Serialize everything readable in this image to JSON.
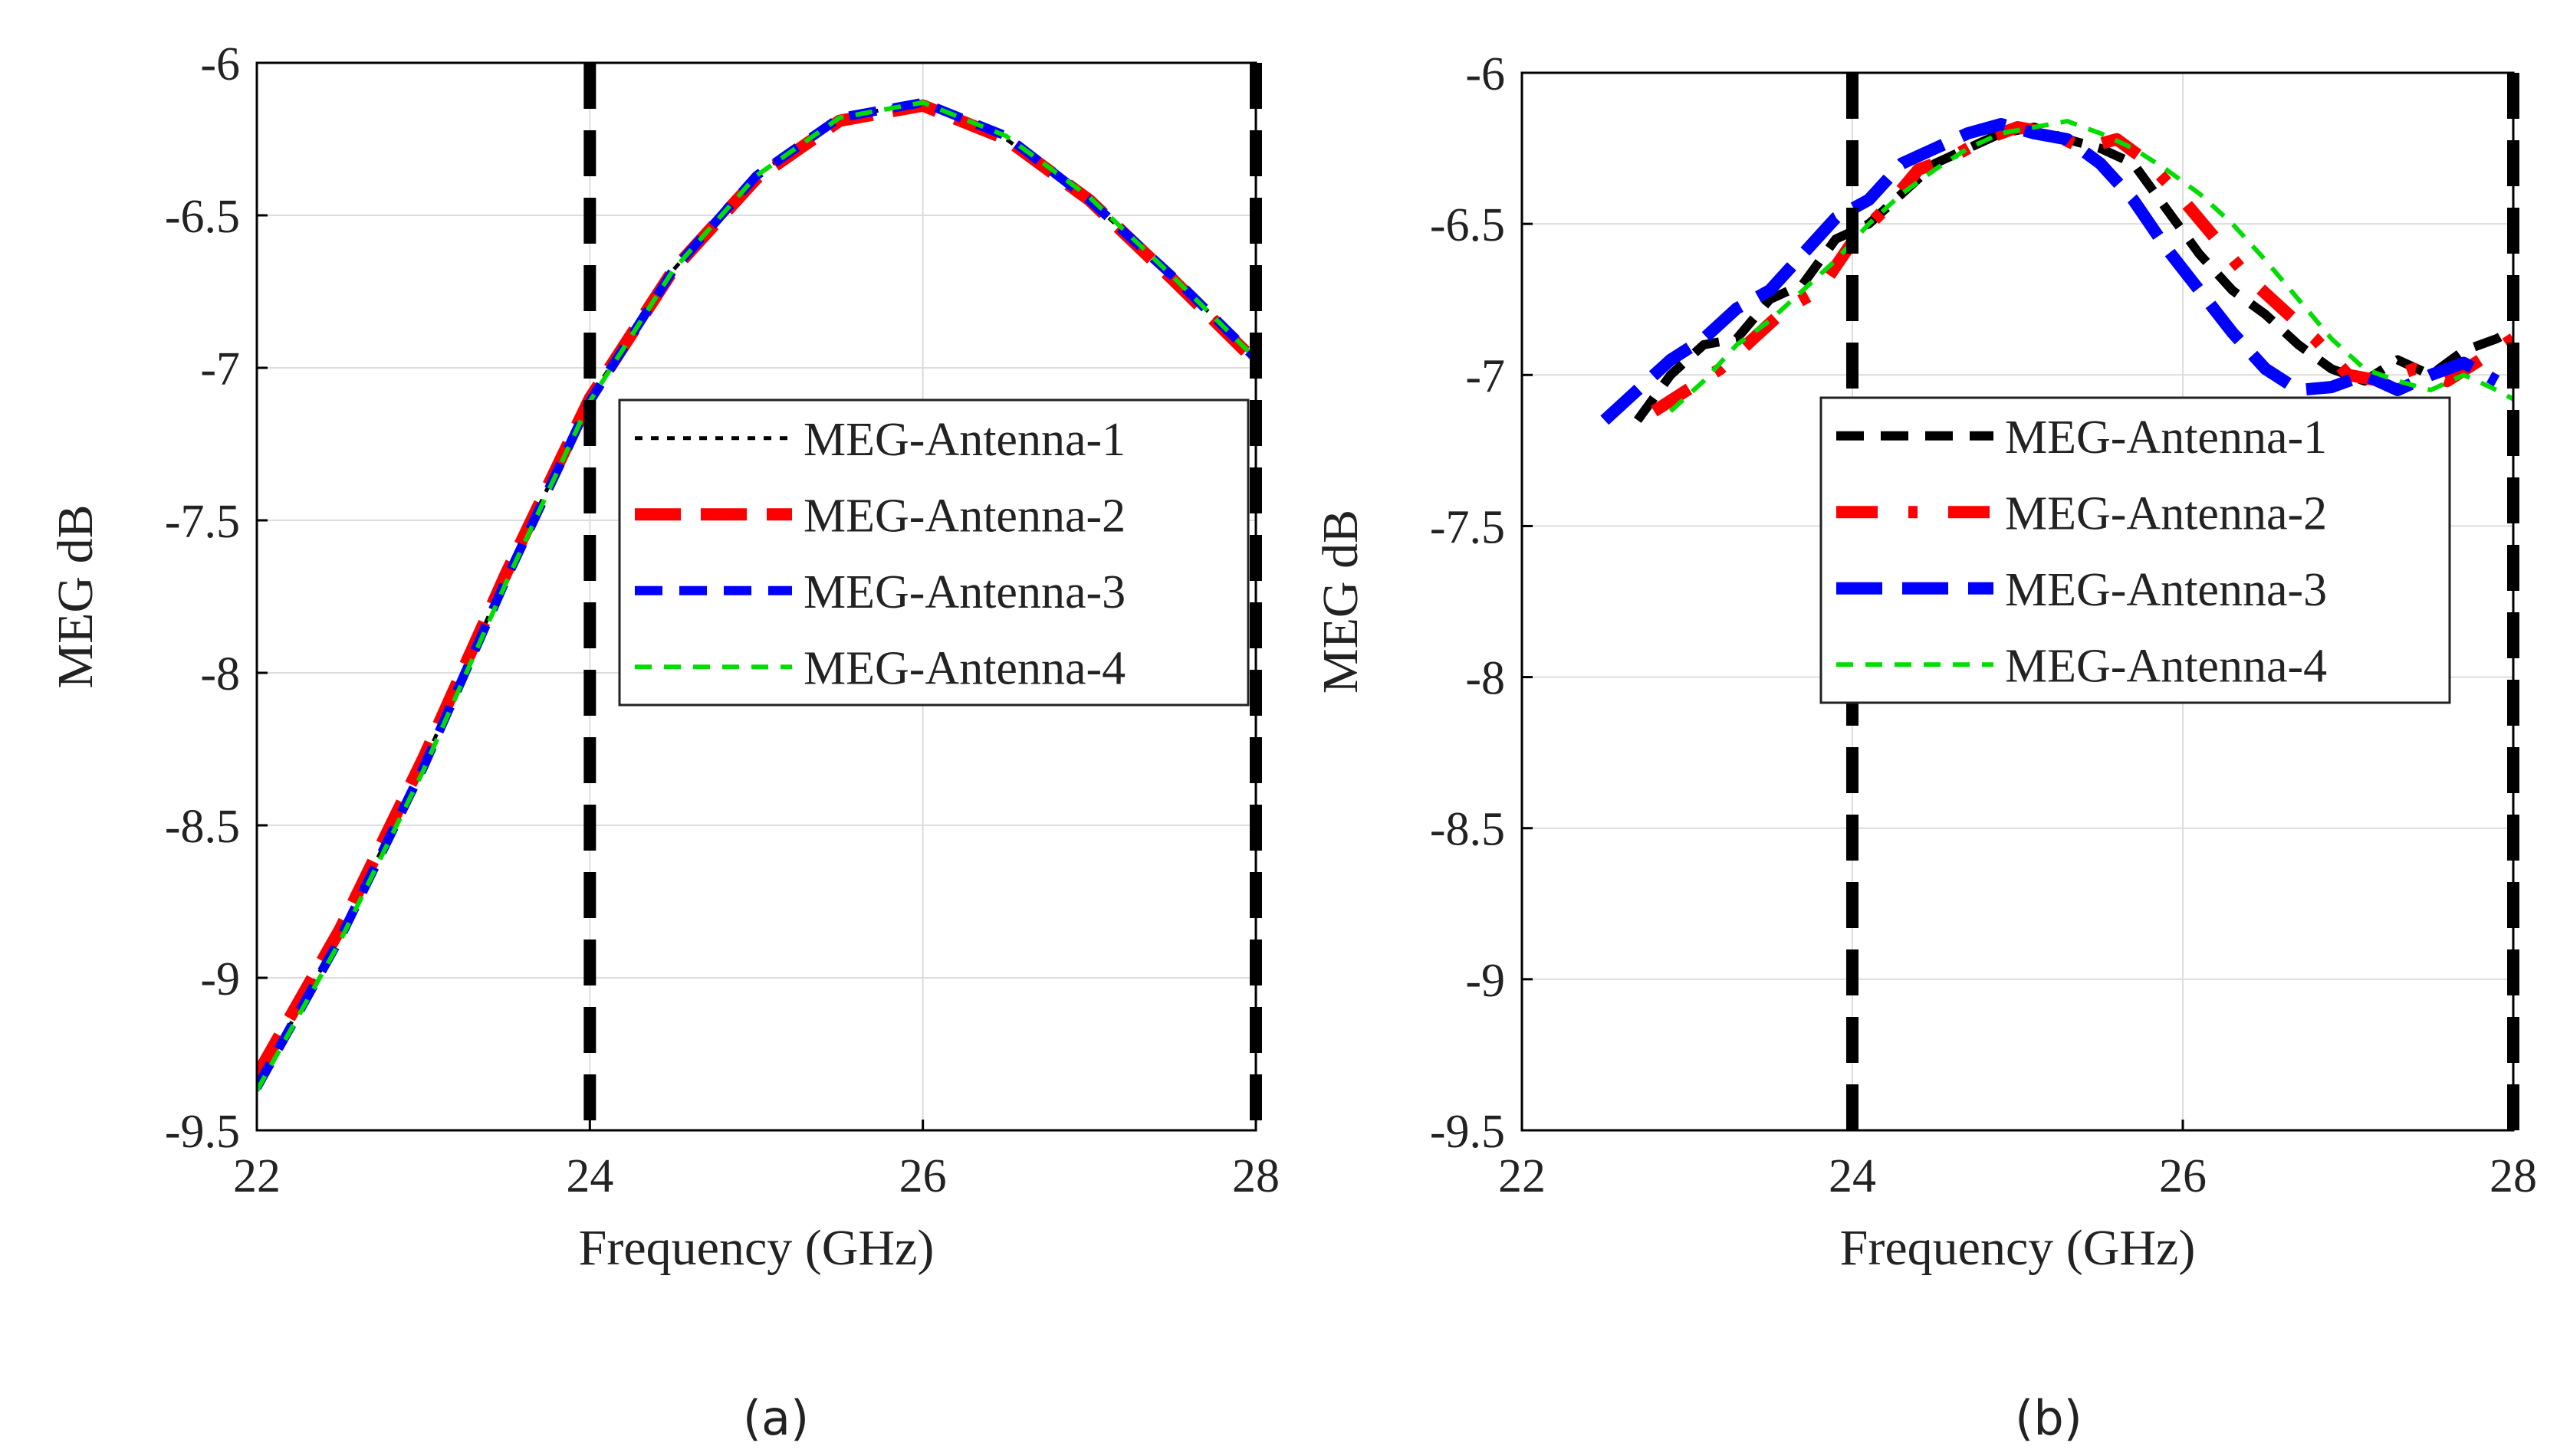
{
  "chart_data": [
    {
      "type": "line",
      "panel_label": "(a)",
      "xlabel": "Frequency (GHz)",
      "ylabel": "MEG dB",
      "xlim": [
        22,
        28
      ],
      "ylim": [
        -9.5,
        -6
      ],
      "xticks": [
        22,
        24,
        26,
        28
      ],
      "xtick_labels": [
        "22",
        "24",
        "26",
        "28"
      ],
      "yticks": [
        -6,
        -6.5,
        -7,
        -7.5,
        -8,
        -8.5,
        -9,
        -9.5
      ],
      "ytick_labels": [
        "-6",
        "-6.5",
        "-7",
        "-7.5",
        "-8",
        "-8.5",
        "-9",
        "-9.5"
      ],
      "grid": true,
      "legend_position": "center-right",
      "vertical_markers": [
        24,
        28
      ],
      "series": [
        {
          "name": "MEG-Antenna-1",
          "color": "#000000",
          "style": "dotted",
          "x": [
            22,
            22.5,
            23,
            23.5,
            24,
            24.5,
            25,
            25.5,
            26,
            26.5,
            27,
            27.5,
            28
          ],
          "y": [
            -9.35,
            -8.86,
            -8.3,
            -7.68,
            -7.1,
            -6.68,
            -6.37,
            -6.18,
            -6.13,
            -6.25,
            -6.45,
            -6.7,
            -6.97
          ]
        },
        {
          "name": "MEG-Antenna-2",
          "color": "#ff0000",
          "style": "long-dash",
          "x": [
            22,
            22.5,
            23,
            23.5,
            24,
            24.5,
            25,
            25.5,
            26,
            26.5,
            27,
            27.5,
            28
          ],
          "y": [
            -9.32,
            -8.84,
            -8.28,
            -7.67,
            -7.1,
            -6.68,
            -6.38,
            -6.19,
            -6.14,
            -6.25,
            -6.45,
            -6.71,
            -6.98
          ]
        },
        {
          "name": "MEG-Antenna-3",
          "color": "#0000ff",
          "style": "dash",
          "x": [
            22,
            22.5,
            23,
            23.5,
            24,
            24.5,
            25,
            25.5,
            26,
            26.5,
            27,
            27.5,
            28
          ],
          "y": [
            -9.36,
            -8.87,
            -8.31,
            -7.69,
            -7.11,
            -6.68,
            -6.37,
            -6.18,
            -6.13,
            -6.24,
            -6.45,
            -6.7,
            -6.97
          ]
        },
        {
          "name": "MEG-Antenna-4",
          "color": "#00dd00",
          "style": "short-dash",
          "x": [
            22,
            22.5,
            23,
            23.5,
            24,
            24.5,
            25,
            25.5,
            26,
            26.5,
            27,
            27.5,
            28
          ],
          "y": [
            -9.37,
            -8.88,
            -8.32,
            -7.7,
            -7.11,
            -6.68,
            -6.37,
            -6.18,
            -6.13,
            -6.24,
            -6.44,
            -6.7,
            -6.97
          ]
        }
      ]
    },
    {
      "type": "line",
      "panel_label": "(b)",
      "xlabel": "Frequency (GHz)",
      "ylabel": "MEG dB",
      "xlim": [
        22,
        28
      ],
      "ylim": [
        -9.5,
        -6
      ],
      "xticks": [
        22,
        24,
        26,
        28
      ],
      "xtick_labels": [
        "22",
        "24",
        "26",
        "28"
      ],
      "yticks": [
        -6,
        -6.5,
        -7,
        -7.5,
        -8,
        -8.5,
        -9,
        -9.5
      ],
      "ytick_labels": [
        "-6",
        "-6.5",
        "-7",
        "-7.5",
        "-8",
        "-8.5",
        "-9",
        "-9.5"
      ],
      "grid": true,
      "legend_position": "center-right",
      "vertical_markers": [
        24,
        28
      ],
      "series": [
        {
          "name": "MEG-Antenna-1",
          "color": "#000000",
          "style": "dash",
          "x": [
            22.7,
            22.9,
            23.1,
            23.3,
            23.5,
            23.7,
            23.9,
            24.1,
            24.3,
            24.5,
            24.7,
            24.9,
            25.1,
            25.3,
            25.5,
            25.7,
            25.9,
            26.1,
            26.3,
            26.5,
            26.7,
            26.9,
            27.1,
            27.3,
            27.5,
            27.7,
            27.9,
            28
          ],
          "y": [
            -7.15,
            -7.0,
            -6.9,
            -6.88,
            -6.75,
            -6.7,
            -6.55,
            -6.5,
            -6.4,
            -6.3,
            -6.25,
            -6.2,
            -6.18,
            -6.22,
            -6.25,
            -6.3,
            -6.45,
            -6.6,
            -6.72,
            -6.8,
            -6.9,
            -6.98,
            -7.02,
            -6.95,
            -7.0,
            -6.92,
            -6.88,
            -6.85
          ]
        },
        {
          "name": "MEG-Antenna-2",
          "color": "#ff0000",
          "style": "dash-dot",
          "x": [
            22.8,
            23.0,
            23.2,
            23.4,
            23.6,
            23.8,
            24.0,
            24.2,
            24.4,
            24.6,
            24.8,
            25.0,
            25.2,
            25.4,
            25.6,
            25.8,
            26.0,
            26.2,
            26.4,
            26.6,
            26.8,
            27.0,
            27.2,
            27.4,
            27.6,
            27.8,
            28
          ],
          "y": [
            -7.12,
            -7.05,
            -6.98,
            -6.88,
            -6.78,
            -6.72,
            -6.56,
            -6.45,
            -6.32,
            -6.28,
            -6.22,
            -6.18,
            -6.2,
            -6.25,
            -6.22,
            -6.3,
            -6.42,
            -6.55,
            -6.68,
            -6.78,
            -6.88,
            -7.0,
            -7.02,
            -6.98,
            -7.02,
            -6.95,
            -6.88
          ]
        },
        {
          "name": "MEG-Antenna-3",
          "color": "#0000ff",
          "style": "long-dash",
          "x": [
            22.5,
            22.7,
            22.9,
            23.1,
            23.3,
            23.5,
            23.7,
            23.9,
            24.1,
            24.3,
            24.5,
            24.7,
            24.9,
            25.1,
            25.3,
            25.5,
            25.7,
            25.9,
            26.1,
            26.3,
            26.5,
            26.7,
            26.9,
            27.1,
            27.3,
            27.5,
            27.7,
            27.9
          ],
          "y": [
            -7.15,
            -7.05,
            -6.95,
            -6.88,
            -6.78,
            -6.72,
            -6.6,
            -6.48,
            -6.42,
            -6.3,
            -6.25,
            -6.2,
            -6.17,
            -6.2,
            -6.22,
            -6.3,
            -6.42,
            -6.58,
            -6.72,
            -6.86,
            -6.98,
            -7.05,
            -7.04,
            -7.0,
            -7.05,
            -7.0,
            -6.96,
            -7.02
          ]
        },
        {
          "name": "MEG-Antenna-4",
          "color": "#00dd00",
          "style": "short-dash",
          "x": [
            22.9,
            23.1,
            23.3,
            23.5,
            23.7,
            23.9,
            24.1,
            24.3,
            24.5,
            24.7,
            24.9,
            25.1,
            25.3,
            25.5,
            25.7,
            25.9,
            26.1,
            26.3,
            26.5,
            26.7,
            26.9,
            27.1,
            27.3,
            27.5,
            27.7,
            27.9,
            28
          ],
          "y": [
            -7.12,
            -7.02,
            -6.9,
            -6.82,
            -6.72,
            -6.62,
            -6.5,
            -6.4,
            -6.32,
            -6.25,
            -6.2,
            -6.18,
            -6.16,
            -6.2,
            -6.25,
            -6.32,
            -6.4,
            -6.5,
            -6.62,
            -6.75,
            -6.88,
            -6.98,
            -7.02,
            -7.05,
            -7.0,
            -7.05,
            -7.08
          ]
        }
      ]
    }
  ]
}
